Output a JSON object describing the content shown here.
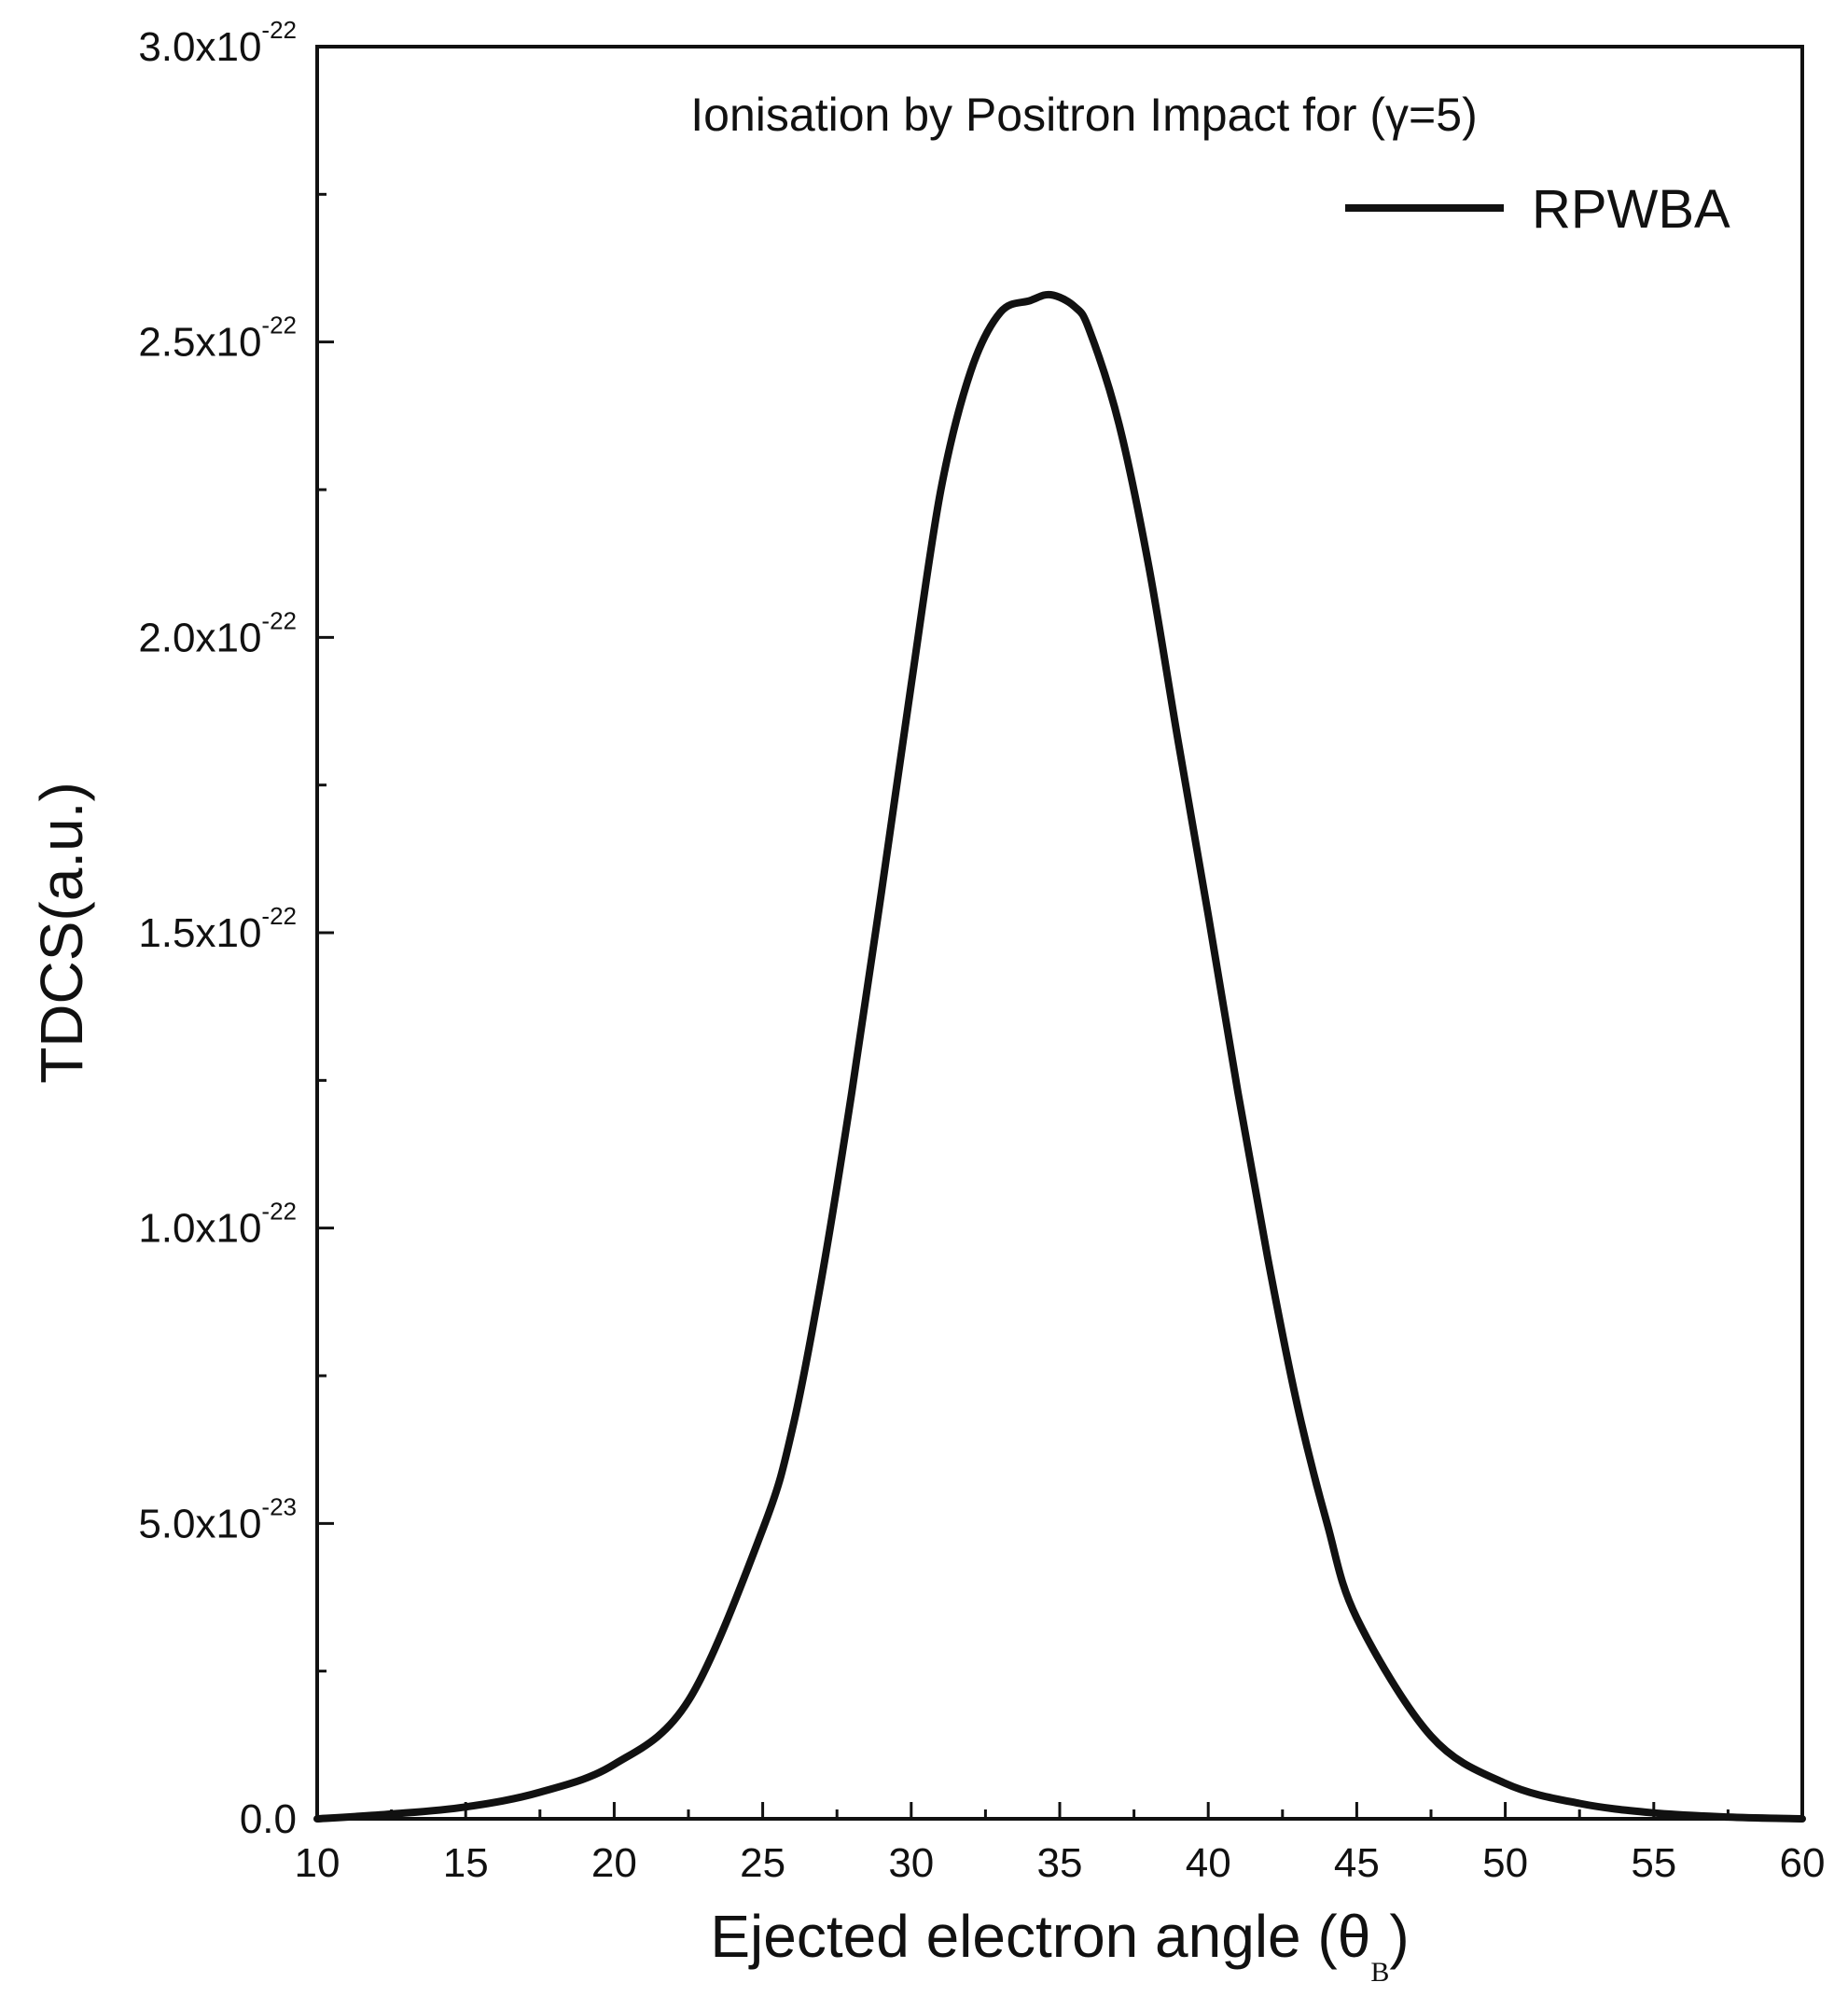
{
  "chart_data": {
    "type": "line",
    "title": "Ionisation by Positron Impact for (γ=5)",
    "xlabel": "Ejected electron angle (θB)",
    "xlabel_parts": {
      "main": "Ejected electron angle (θ",
      "sub": "B",
      "close": ")"
    },
    "ylabel": "TDCS(a.u.)",
    "xlim": [
      10,
      60
    ],
    "ylim": [
      0,
      3e-22
    ],
    "x_ticks": [
      10,
      15,
      20,
      25,
      30,
      35,
      40,
      45,
      50,
      55,
      60
    ],
    "x_tick_labels": [
      "10",
      "15",
      "20",
      "25",
      "30",
      "35",
      "40",
      "45",
      "50",
      "55",
      "60"
    ],
    "y_ticks": [
      0,
      5e-23,
      1e-22,
      1.5e-22,
      2e-22,
      2.5e-22,
      3e-22
    ],
    "y_tick_labels": [
      {
        "mantissa": "0.0",
        "exp": ""
      },
      {
        "mantissa": "5.0x10",
        "exp": "-23"
      },
      {
        "mantissa": "1.0x10",
        "exp": "-22"
      },
      {
        "mantissa": "1.5x10",
        "exp": "-22"
      },
      {
        "mantissa": "2.0x10",
        "exp": "-22"
      },
      {
        "mantissa": "2.5x10",
        "exp": "-22"
      },
      {
        "mantissa": "3.0x10",
        "exp": "-22"
      }
    ],
    "grid": false,
    "legend_position": "top-right",
    "series": [
      {
        "name": "RPWBA",
        "color": "#111111",
        "x": [
          10,
          12.5,
          15,
          17.5,
          20,
          22.5,
          25,
          26,
          27,
          28,
          29,
          30,
          31,
          32,
          33,
          34,
          34.7,
          35.5,
          36,
          37,
          38,
          39,
          40,
          41,
          42,
          43,
          44,
          45,
          47.5,
          50,
          52.5,
          55,
          57.5,
          60
        ],
        "y": [
          0,
          8e-25,
          2e-24,
          4.5e-24,
          9.2e-24,
          2e-23,
          4.9e-23,
          6.6e-23,
          9.2e-23,
          1.23e-22,
          1.57e-22,
          1.92e-22,
          2.25e-22,
          2.45e-22,
          2.55e-22,
          2.57e-22,
          2.58e-22,
          2.56e-22,
          2.52e-22,
          2.36e-22,
          2.12e-22,
          1.82e-22,
          1.53e-22,
          1.23e-22,
          9.5e-23,
          7e-23,
          5e-23,
          3.4e-23,
          1.4e-23,
          6e-24,
          2.6e-24,
          1e-24,
          3e-25,
          0
        ]
      }
    ]
  }
}
